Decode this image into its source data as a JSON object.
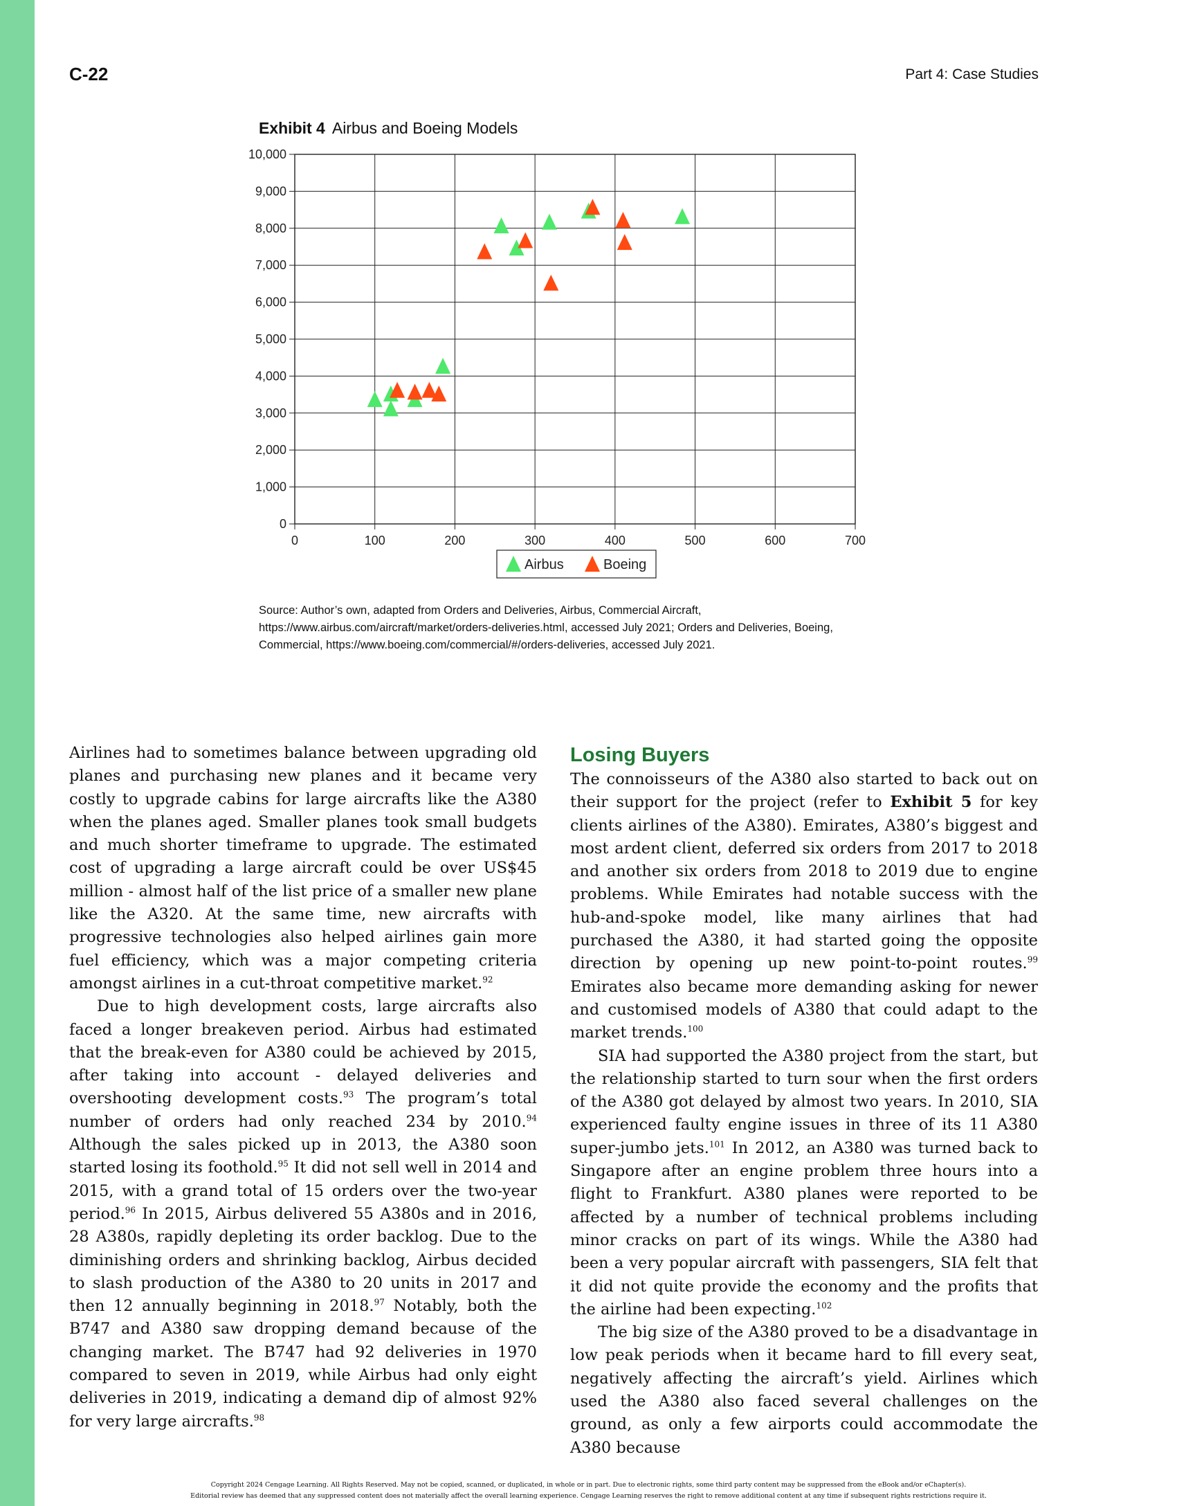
{
  "header": {
    "page_number": "C-22",
    "running_head": "Part 4: Case Studies"
  },
  "exhibit": {
    "label": "Exhibit 4",
    "title": "Airbus and Boeing Models"
  },
  "chart_data": {
    "type": "scatter",
    "title": "Airbus and Boeing Models",
    "xlabel": "",
    "ylabel": "",
    "xlim": [
      0,
      700
    ],
    "ylim": [
      0,
      10000
    ],
    "x_ticks": [
      0,
      100,
      200,
      300,
      400,
      500,
      600,
      700
    ],
    "y_ticks": [
      0,
      1000,
      2000,
      3000,
      4000,
      5000,
      6000,
      7000,
      8000,
      9000,
      10000
    ],
    "x_tick_labels": [
      "0",
      "100",
      "200",
      "300",
      "400",
      "500",
      "600",
      "700"
    ],
    "y_tick_labels": [
      "0",
      "1,000",
      "2,000",
      "3,000",
      "4,000",
      "5,000",
      "6,000",
      "7,000",
      "8,000",
      "9,000",
      "10,000"
    ],
    "grid": true,
    "legend": "bottom",
    "series": [
      {
        "name": "Airbus",
        "color": "#4ee86a",
        "marker": "triangle",
        "points": [
          [
            100,
            3350
          ],
          [
            120,
            3500
          ],
          [
            120,
            3100
          ],
          [
            150,
            3350
          ],
          [
            185,
            4250
          ],
          [
            258,
            8050
          ],
          [
            277,
            7450
          ],
          [
            318,
            8150
          ],
          [
            367,
            8450
          ],
          [
            484,
            8300
          ]
        ]
      },
      {
        "name": "Boeing",
        "color": "#ff4a12",
        "marker": "triangle",
        "points": [
          [
            128,
            3600
          ],
          [
            150,
            3550
          ],
          [
            168,
            3600
          ],
          [
            180,
            3500
          ],
          [
            237,
            7350
          ],
          [
            288,
            7650
          ],
          [
            320,
            6500
          ],
          [
            372,
            8550
          ],
          [
            410,
            8200
          ],
          [
            412,
            7600
          ]
        ]
      }
    ]
  },
  "source": "Source: Author’s own, adapted from Orders and Deliveries, Airbus, Commercial Aircraft, https://www.airbus.com/aircraft/market/orders-deliveries.html, accessed July 2021; Orders and Deliveries, Boeing, Commercial, https://www.boeing.com/commercial/#/orders-deliveries, accessed July 2021.",
  "left_column": {
    "p1": {
      "text": "Airlines had to sometimes balance between upgrading old planes and purchasing new planes and it became very costly to upgrade cabins for large aircrafts like the A380 when the planes aged. Smaller planes took small budgets and much shorter timeframe to upgrade. The estimated cost of upgrading a large aircraft could be over US$45 million - almost half of the list price of a smaller new plane like the A320. At the same time, new aircrafts with progressive technologies also helped airlines gain more fuel efficiency, which was a major competing criteria amongst airlines in a cut-throat competitive market.",
      "fn": "92"
    },
    "p2": {
      "s1": "Due to high development costs, large aircrafts also faced a longer breakeven period. Airbus had estimated that the break-even for A380 could be achieved by 2015, after taking into account - delayed deliveries and overshooting development costs.",
      "fn1": "93",
      "s2": " The program’s total number of orders had only reached 234 by 2010.",
      "fn2": "94",
      "s3": " Although the sales picked up in 2013, the A380 soon started losing its foothold.",
      "fn3": "95",
      "s4": " It did not sell well in 2014 and 2015, with a grand total of 15 orders over the two-year period.",
      "fn4": "96",
      "s5": " In 2015, Airbus delivered 55 A380s and in 2016, 28 A380s, rapidly depleting its order backlog. Due to the diminishing orders and shrinking backlog, Airbus decided to slash production of the A380 to 20 units in 2017 and then 12 annually beginning in 2018.",
      "fn5": "97",
      "s6": " Notably, both the B747 and A380 saw dropping demand because of the changing market. The B747 had 92 deliveries in 1970 compared to seven in 2019, while Airbus had only eight deliveries in 2019, indicating a demand dip of almost 92% for very large aircrafts.",
      "fn6": "98"
    }
  },
  "right_column": {
    "heading": "Losing Buyers",
    "p1": {
      "s1": "The connoisseurs of the A380 also started to back out on their support for the project (refer to ",
      "bold": "Exhibit 5",
      "s2": " for key clients airlines of the A380). Emirates, A380’s biggest and most ardent client, deferred six orders from 2017 to 2018 and another six orders from 2018 to 2019 due to engine problems. While Emirates had notable success with the hub-and-spoke model, like many airlines that had purchased the A380, it had started going the opposite direction by opening up new point-to-point routes.",
      "fn1": "99",
      "s3": " Emirates also became more demanding asking for newer and customised models of A380 that could adapt to the market trends.",
      "fn2": "100"
    },
    "p2": {
      "s1": "SIA had supported the A380 project from the start, but the relationship started to turn sour when the first orders of the A380 got delayed by almost two years. In 2010, SIA experienced faulty engine issues in three of its 11 A380 super-jumbo jets.",
      "fn1": "101",
      "s2": " In 2012, an A380 was turned back to Singapore after an engine problem three hours into a flight to Frankfurt. A380 planes were reported to be affected by a number of technical problems including minor cracks on part of its wings. While the A380 had been a very popular aircraft with passengers, SIA felt that it did not quite provide the economy and the profits that the airline had been expecting.",
      "fn2": "102"
    },
    "p3": "The big size of the A380 proved to be a disadvantage in low peak periods when it became hard to fill every seat, negatively affecting the aircraft’s yield. Airlines which used the A380 also faced several challenges on the ground, as only a few airports could accommodate the A380 because"
  },
  "footer": {
    "line1": "Copyright 2024 Cengage Learning. All Rights Reserved. May not be copied, scanned, or duplicated, in whole or in part. Due to electronic rights, some third party content may be suppressed from the eBook and/or eChapter(s).",
    "line2": "Editorial review has deemed that any suppressed content does not materially affect the overall learning experience. Cengage Learning reserves the right to remove additional content at any time if subsequent rights restrictions require it."
  }
}
